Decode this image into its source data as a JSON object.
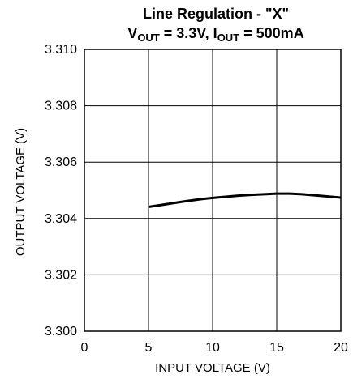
{
  "chart_data": {
    "type": "line",
    "title": "Line Regulation - \"X\"",
    "subtitle": {
      "v_main": "V",
      "v_sub": "OUT",
      "v_rest": " = 3.3V, ",
      "i_main": "I",
      "i_sub": "OUT",
      "i_rest": " = 500mA"
    },
    "xlabel": "INPUT VOLTAGE (V)",
    "ylabel": "OUTPUT VOLTAGE (V)",
    "xlim": [
      0,
      20
    ],
    "ylim": [
      3.3,
      3.31
    ],
    "xticks": [
      0,
      5,
      10,
      15,
      20
    ],
    "xtick_labels": [
      "0",
      "5",
      "10",
      "15",
      "20"
    ],
    "yticks": [
      3.3,
      3.302,
      3.304,
      3.306,
      3.308,
      3.31
    ],
    "ytick_labels": [
      "3.300",
      "3.302",
      "3.304",
      "3.306",
      "3.308",
      "3.310"
    ],
    "grid": true,
    "series": [
      {
        "color": "#000000",
        "x": [
          5,
          6,
          7,
          8,
          9,
          10,
          11,
          12,
          13,
          14,
          15,
          16,
          17,
          18,
          19,
          20
        ],
        "y": [
          3.30441,
          3.30448,
          3.30455,
          3.30462,
          3.30468,
          3.30473,
          3.30477,
          3.30481,
          3.30484,
          3.30486,
          3.30488,
          3.30488,
          3.30486,
          3.30482,
          3.30478,
          3.30474
        ]
      }
    ]
  }
}
